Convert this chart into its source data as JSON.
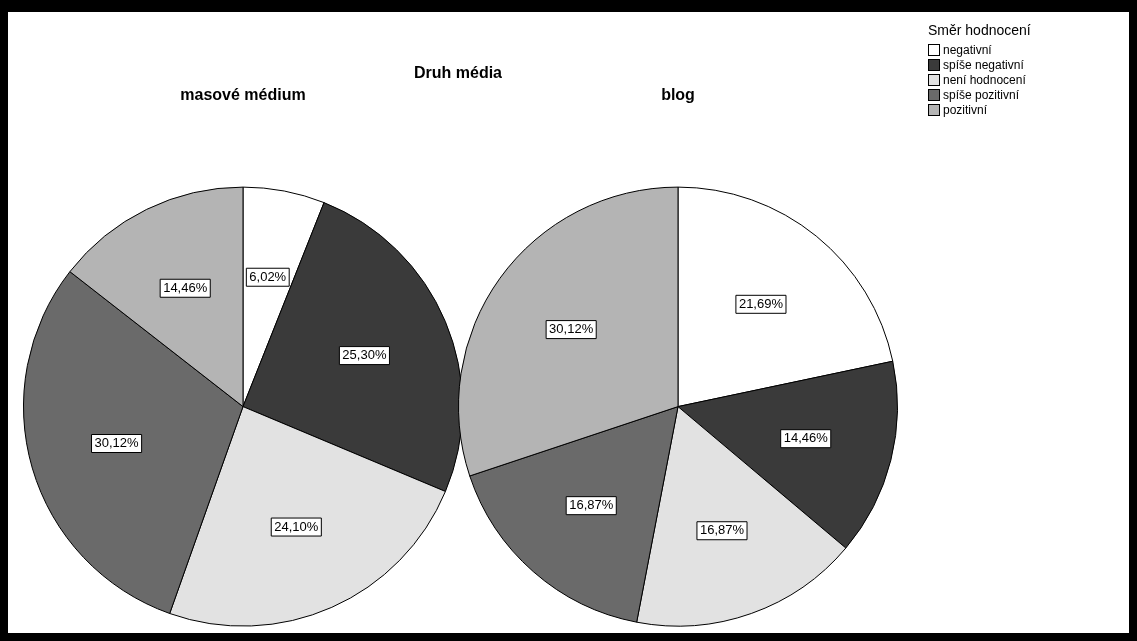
{
  "chart_data": [
    {
      "type": "pie",
      "title": "Druh média",
      "subtitle": "masové médium",
      "legend": "top right",
      "legend_title": "Směr hodnocení",
      "categories": [
        "negativní",
        "spíše negativní",
        "není hodnocení",
        "spíše pozitivní",
        "pozitivní"
      ],
      "values": [
        6.02,
        25.3,
        24.1,
        30.12,
        14.46
      ],
      "value_labels": [
        "6,02%",
        "25,30%",
        "24,10%",
        "30,12%",
        "14,46%"
      ],
      "colors": [
        "#ffffff",
        "#3a3a3a",
        "#e2e2e2",
        "#6a6a6a",
        "#b4b4b4"
      ]
    },
    {
      "type": "pie",
      "subtitle": "blog",
      "categories": [
        null,
        null,
        null,
        null,
        null
      ],
      "values": [
        21.69,
        14.46,
        16.87,
        16.87,
        30.12
      ],
      "value_labels": [
        "21,69%",
        "14,46%",
        "16,87%",
        "16,87%",
        "30,12%"
      ],
      "colors": [
        "#ffffff",
        "#3a3a3a",
        "#e2e2e2",
        "#6a6a6a",
        "#b4b4b4"
      ]
    }
  ]
}
